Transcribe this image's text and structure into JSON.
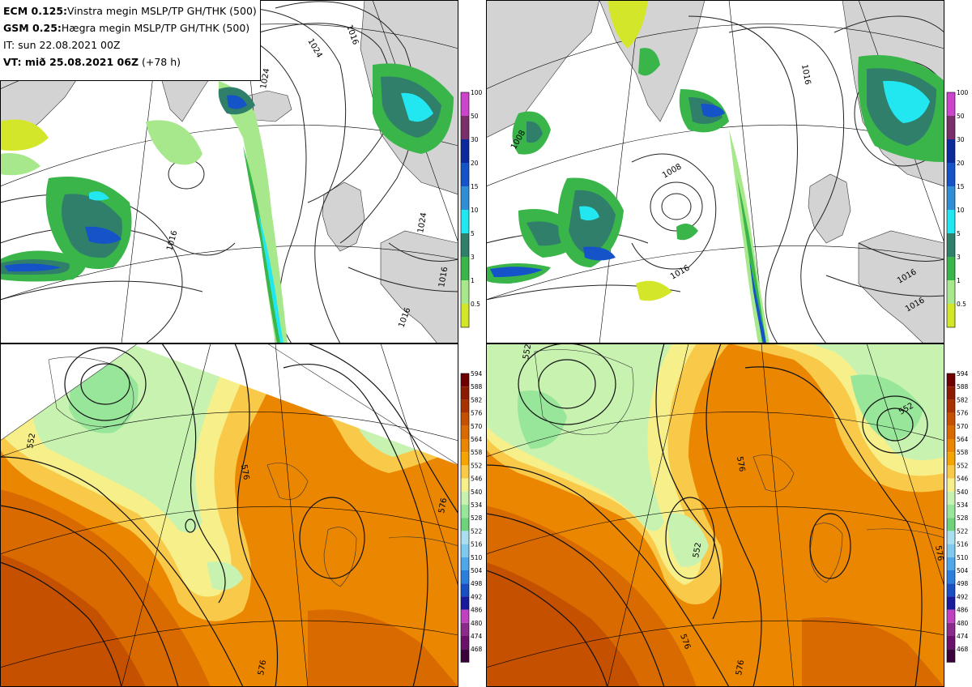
{
  "info": {
    "line1_bold": "ECM 0.125:",
    "line1_rest": "Vinstra megin MSLP/TP GH/THK (500)",
    "line2_bold": "GSM 0.25:",
    "line2_rest": "Hægra megin MSLP/TP GH/THK (500)",
    "line3": "IT: sun 22.08.2021 00Z",
    "line4_bold": "VT: mið 25.08.2021 06Z",
    "line4_rest": "(+78 h)"
  },
  "colors": {
    "land": "#d3d3d3",
    "ocean": "#ffffff",
    "isobar": "#222222"
  },
  "precip_legend": {
    "labels": [
      "100",
      "50",
      "30",
      "20",
      "15",
      "10",
      "5",
      "3",
      "1",
      "0.5"
    ],
    "colors": [
      "#cc44cc",
      "#7a2e6a",
      "#0b2a9c",
      "#1454c8",
      "#2f8fd6",
      "#22e6f0",
      "#2f7f6a",
      "#39b54a",
      "#a8e88c",
      "#d4e62a"
    ]
  },
  "thickness_legend": {
    "labels": [
      "594",
      "588",
      "582",
      "576",
      "570",
      "564",
      "558",
      "552",
      "546",
      "540",
      "534",
      "528",
      "522",
      "516",
      "510",
      "504",
      "498",
      "492",
      "486",
      "480",
      "474",
      "468"
    ],
    "colors": [
      "#6e0000",
      "#8b1a00",
      "#a83300",
      "#c45000",
      "#d86a00",
      "#ea8600",
      "#f5a300",
      "#f9c94a",
      "#f7f08a",
      "#c8f2b0",
      "#98e69a",
      "#6fd27c",
      "#a9dfef",
      "#7fc9ef",
      "#4ea7e8",
      "#2a7fdc",
      "#1a4fc4",
      "#1a1a9c",
      "#c040c0",
      "#8a2a8a",
      "#6a106a",
      "#3a003a"
    ]
  },
  "contour_labels": {
    "ecm_mslp": [
      "1024",
      "1024",
      "1016",
      "1016",
      "1016",
      "1016",
      "1024"
    ],
    "gsm_mslp": [
      "1016",
      "1008",
      "1008",
      "1016",
      "1016",
      "1016"
    ],
    "ecm_gh": [
      "552",
      "576",
      "576",
      "576"
    ],
    "gsm_gh": [
      "552",
      "576",
      "552",
      "552",
      "576",
      "576",
      "576"
    ]
  }
}
